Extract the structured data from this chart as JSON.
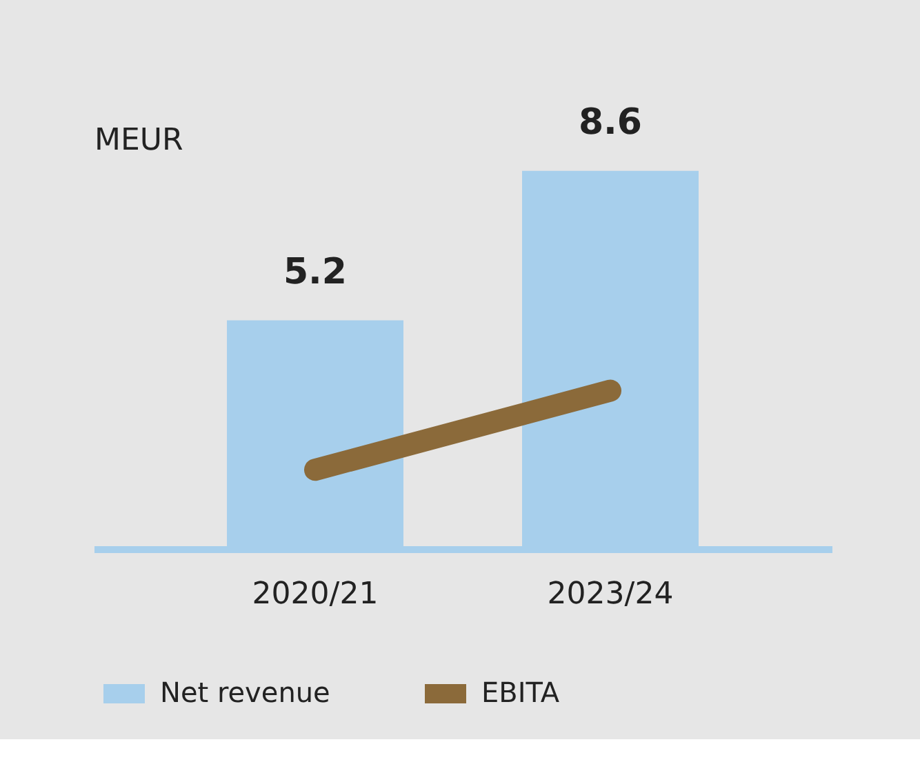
{
  "chart_data": {
    "type": "bar",
    "ylabel": "MEUR",
    "categories": [
      "2020/21",
      "2023/24"
    ],
    "series": [
      {
        "name": "Net revenue",
        "color": "#a7cfec",
        "values": [
          5.2,
          8.6
        ],
        "value_labels": [
          "5.2",
          "8.6"
        ]
      },
      {
        "name": "EBITA",
        "type": "line",
        "color": "#8b6a3a",
        "values": [
          1.8,
          3.6
        ]
      }
    ],
    "legend": "bottom",
    "grid": false
  }
}
